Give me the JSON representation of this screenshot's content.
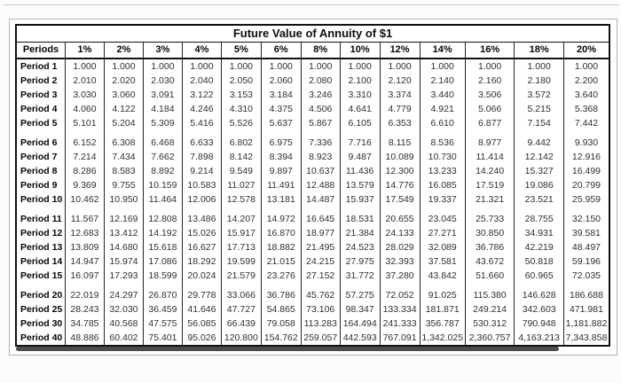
{
  "table": {
    "title": "Future Value of Annuity of $1",
    "period_header": "Periods",
    "rate_headers": [
      "1%",
      "2%",
      "3%",
      "4%",
      "5%",
      "6%",
      "8%",
      "10%",
      "12%",
      "14%",
      "16%",
      "18%",
      "20%"
    ],
    "groups": [
      {
        "rows": [
          {
            "label": "Period 1",
            "values": [
              "1.000",
              "1.000",
              "1.000",
              "1.000",
              "1.000",
              "1.000",
              "1.000",
              "1.000",
              "1.000",
              "1.000",
              "1.000",
              "1.000",
              "1.000"
            ]
          },
          {
            "label": "Period 2",
            "values": [
              "2.010",
              "2.020",
              "2.030",
              "2.040",
              "2.050",
              "2.060",
              "2.080",
              "2.100",
              "2.120",
              "2.140",
              "2.160",
              "2.180",
              "2.200"
            ]
          },
          {
            "label": "Period 3",
            "values": [
              "3.030",
              "3.060",
              "3.091",
              "3.122",
              "3.153",
              "3.184",
              "3.246",
              "3.310",
              "3.374",
              "3.440",
              "3.506",
              "3.572",
              "3.640"
            ]
          },
          {
            "label": "Period 4",
            "values": [
              "4.060",
              "4.122",
              "4.184",
              "4.246",
              "4.310",
              "4.375",
              "4.506",
              "4.641",
              "4.779",
              "4.921",
              "5.066",
              "5.215",
              "5.368"
            ]
          },
          {
            "label": "Period 5",
            "values": [
              "5.101",
              "5.204",
              "5.309",
              "5.416",
              "5.526",
              "5.637",
              "5.867",
              "6.105",
              "6.353",
              "6.610",
              "6.877",
              "7.154",
              "7.442"
            ]
          }
        ]
      },
      {
        "rows": [
          {
            "label": "Period 6",
            "values": [
              "6.152",
              "6.308",
              "6.468",
              "6.633",
              "6.802",
              "6.975",
              "7.336",
              "7.716",
              "8.115",
              "8.536",
              "8.977",
              "9.442",
              "9.930"
            ]
          },
          {
            "label": "Period 7",
            "values": [
              "7.214",
              "7.434",
              "7.662",
              "7.898",
              "8.142",
              "8.394",
              "8.923",
              "9.487",
              "10.089",
              "10.730",
              "11.414",
              "12.142",
              "12.916"
            ]
          },
          {
            "label": "Period 8",
            "values": [
              "8.286",
              "8.583",
              "8.892",
              "9.214",
              "9.549",
              "9.897",
              "10.637",
              "11.436",
              "12.300",
              "13.233",
              "14.240",
              "15.327",
              "16.499"
            ]
          },
          {
            "label": "Period 9",
            "values": [
              "9.369",
              "9.755",
              "10.159",
              "10.583",
              "11.027",
              "11.491",
              "12.488",
              "13.579",
              "14.776",
              "16.085",
              "17.519",
              "19.086",
              "20.799"
            ]
          },
          {
            "label": "Period 10",
            "values": [
              "10.462",
              "10.950",
              "11.464",
              "12.006",
              "12.578",
              "13.181",
              "14.487",
              "15.937",
              "17.549",
              "19.337",
              "21.321",
              "23.521",
              "25.959"
            ]
          }
        ]
      },
      {
        "rows": [
          {
            "label": "Period 11",
            "values": [
              "11.567",
              "12.169",
              "12.808",
              "13.486",
              "14.207",
              "14.972",
              "16.645",
              "18.531",
              "20.655",
              "23.045",
              "25.733",
              "28.755",
              "32.150"
            ]
          },
          {
            "label": "Period 12",
            "values": [
              "12.683",
              "13.412",
              "14.192",
              "15.026",
              "15.917",
              "16.870",
              "18.977",
              "21.384",
              "24.133",
              "27.271",
              "30.850",
              "34.931",
              "39.581"
            ]
          },
          {
            "label": "Period 13",
            "values": [
              "13.809",
              "14.680",
              "15.618",
              "16.627",
              "17.713",
              "18.882",
              "21.495",
              "24.523",
              "28.029",
              "32.089",
              "36.786",
              "42.219",
              "48.497"
            ]
          },
          {
            "label": "Period 14",
            "values": [
              "14.947",
              "15.974",
              "17.086",
              "18.292",
              "19.599",
              "21.015",
              "24.215",
              "27.975",
              "32.393",
              "37.581",
              "43.672",
              "50.818",
              "59.196"
            ]
          },
          {
            "label": "Period 15",
            "values": [
              "16.097",
              "17.293",
              "18.599",
              "20.024",
              "21.579",
              "23.276",
              "27.152",
              "31.772",
              "37.280",
              "43.842",
              "51.660",
              "60.965",
              "72.035"
            ]
          }
        ]
      },
      {
        "rows": [
          {
            "label": "Period 20",
            "values": [
              "22.019",
              "24.297",
              "26.870",
              "29.778",
              "33.066",
              "36.786",
              "45.762",
              "57.275",
              "72.052",
              "91.025",
              "115.380",
              "146.628",
              "186.688"
            ]
          },
          {
            "label": "Period 25",
            "values": [
              "28.243",
              "32.030",
              "36.459",
              "41.646",
              "47.727",
              "54.865",
              "73.106",
              "98.347",
              "133.334",
              "181.871",
              "249.214",
              "342.603",
              "471.981"
            ]
          },
          {
            "label": "Period 30",
            "values": [
              "34.785",
              "40.568",
              "47.575",
              "56.085",
              "66.439",
              "79.058",
              "113.283",
              "164.494",
              "241.333",
              "356.787",
              "530.312",
              "790.948",
              "1,181.882"
            ]
          },
          {
            "label": "Period 40",
            "values": [
              "48.886",
              "60.402",
              "75.401",
              "95.026",
              "120.800",
              "154.762",
              "259.057",
              "442.593",
              "767.091",
              "1,342.025",
              "2,360.757",
              "4,163.213",
              "7,343.858"
            ]
          }
        ]
      }
    ]
  },
  "colors": {
    "table_border": "#111111",
    "grid_line": "#262626",
    "header_text": "#050505",
    "value_text": "#2e2e2e",
    "shadow": "#4c4c4c"
  }
}
